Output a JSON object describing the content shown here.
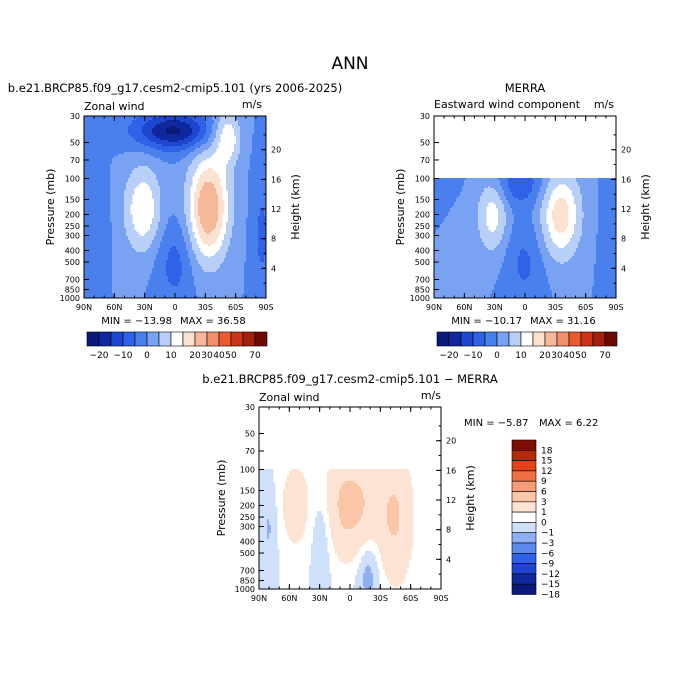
{
  "figure_title": "ANN",
  "chart_data": [
    {
      "type": "heatmap",
      "id": "model",
      "panel_title": "b.e21.BRCP85.f09_g17.cesm2-cmip5.101 (yrs 2006-2025)",
      "left_label": "Zonal wind",
      "right_label": "m/s",
      "xlabel": "",
      "ylabel": "Pressure (mb)",
      "y2label": "Height (km)",
      "x_ticks": [
        "90N",
        "60N",
        "30N",
        "0",
        "30S",
        "60S",
        "90S"
      ],
      "y_ticks": [
        "30",
        "50",
        "70",
        "100",
        "150",
        "200",
        "250",
        "300",
        "400",
        "500",
        "700",
        "850",
        "1000"
      ],
      "y2_ticks": [
        "20",
        "16",
        "12",
        "8",
        "4"
      ],
      "ylim": [
        1000,
        30
      ],
      "data_top_mb": 30,
      "min": "MIN = −13.98",
      "max": "MAX =   36.58",
      "colorbar_labels": [
        "−20",
        "−10",
        "0",
        "10",
        "20",
        "30",
        "40",
        "50",
        "70"
      ],
      "field": {
        "features": [
          {
            "lat": 32,
            "p": 180,
            "amp": 15,
            "wlat": 13,
            "wlogp": 0.58
          },
          {
            "lat": -33,
            "p": 175,
            "amp": 26,
            "wlat": 14,
            "wlogp": 0.7
          },
          {
            "lat": -52,
            "p": 45,
            "amp": 14,
            "wlat": 9,
            "wlogp": 0.35
          },
          {
            "lat": 12,
            "p": 40,
            "amp": -14,
            "wlat": 24,
            "wlogp": 0.25
          },
          {
            "lat": -10,
            "p": 40,
            "amp": -10,
            "wlat": 20,
            "wlogp": 0.25
          },
          {
            "lat": 0,
            "p": 500,
            "amp": -7,
            "wlat": 13,
            "wlogp": 0.6
          },
          {
            "lat": 85,
            "p": 200,
            "amp": -4,
            "wlat": 12,
            "wlogp": 0.6
          },
          {
            "lat": -86,
            "p": 300,
            "amp": -6,
            "wlat": 7,
            "wlogp": 0.9
          }
        ]
      }
    },
    {
      "type": "heatmap",
      "id": "obs",
      "panel_title": "MERRA",
      "left_label": "Eastward wind component",
      "right_label": "m/s",
      "xlabel": "",
      "ylabel": "Pressure (mb)",
      "y2label": "Height (km)",
      "x_ticks": [
        "90N",
        "60N",
        "30N",
        "0",
        "30S",
        "60S",
        "90S"
      ],
      "y_ticks": [
        "30",
        "50",
        "70",
        "100",
        "150",
        "200",
        "250",
        "300",
        "400",
        "500",
        "700",
        "850",
        "1000"
      ],
      "y2_ticks": [
        "20",
        "16",
        "12",
        "8",
        "4"
      ],
      "ylim": [
        1000,
        30
      ],
      "data_top_mb": 100,
      "min": "MIN = −10.17",
      "max": "MAX =   31.16",
      "colorbar_labels": [
        "−20",
        "−10",
        "0",
        "10",
        "20",
        "30",
        "40",
        "50",
        "70"
      ],
      "field": {
        "features": [
          {
            "lat": 32,
            "p": 190,
            "amp": 13,
            "wlat": 11,
            "wlogp": 0.55
          },
          {
            "lat": -35,
            "p": 200,
            "amp": 18,
            "wlat": 14,
            "wlogp": 0.6
          },
          {
            "lat": 8,
            "p": 110,
            "amp": -9,
            "wlat": 20,
            "wlogp": 0.3
          },
          {
            "lat": 0,
            "p": 500,
            "amp": -6,
            "wlat": 14,
            "wlogp": 0.6
          },
          {
            "lat": -86,
            "p": 350,
            "amp": -5,
            "wlat": 7,
            "wlogp": 0.9
          }
        ]
      }
    },
    {
      "type": "heatmap",
      "id": "diff",
      "panel_title": "b.e21.BRCP85.f09_g17.cesm2-cmip5.101 − MERRA",
      "left_label": "Zonal wind",
      "right_label": "m/s",
      "xlabel": "",
      "ylabel": "Pressure (mb)",
      "y2label": "Height (km)",
      "x_ticks": [
        "90N",
        "60N",
        "30N",
        "0",
        "30S",
        "60S",
        "90S"
      ],
      "y_ticks": [
        "30",
        "50",
        "70",
        "100",
        "150",
        "200",
        "250",
        "300",
        "400",
        "500",
        "700",
        "850",
        "1000"
      ],
      "y2_ticks": [
        "20",
        "16",
        "12",
        "8",
        "4"
      ],
      "ylim": [
        1000,
        30
      ],
      "data_top_mb": 100,
      "min": "MIN =   −5.87",
      "max": "MAX =     6.22",
      "colorbar_labels": [
        "18",
        "15",
        "12",
        "9",
        "6",
        "3",
        "1",
        "0",
        "−1",
        "−3",
        "−6",
        "−9",
        "−12",
        "−15",
        "−18"
      ],
      "field": {
        "features": [
          {
            "lat": 0,
            "p": 200,
            "amp": 3.8,
            "wlat": 20,
            "wlogp": 0.7
          },
          {
            "lat": -45,
            "p": 250,
            "amp": 3.0,
            "wlat": 12,
            "wlogp": 0.9
          },
          {
            "lat": 55,
            "p": 200,
            "amp": 1.6,
            "wlat": 12,
            "wlogp": 0.7
          },
          {
            "lat": 1,
            "p": 148,
            "amp": 2.5,
            "wlat": 3,
            "wlogp": 0.05
          },
          {
            "lat": -18,
            "p": 700,
            "amp": -1.8,
            "wlat": 8,
            "wlogp": 0.5
          },
          {
            "lat": 28,
            "p": 300,
            "amp": -1.6,
            "wlat": 8,
            "wlogp": 0.7
          },
          {
            "lat": 80,
            "p": 300,
            "amp": -1.2,
            "wlat": 6,
            "wlogp": 0.6
          }
        ]
      }
    }
  ],
  "colors": {
    "wind_fills": [
      "#0a1a7a",
      "#10289e",
      "#1e46d0",
      "#2f62e6",
      "#4a80ee",
      "#7aa2f2",
      "#b8d0f8",
      "#ffffff",
      "#fbe2cf",
      "#f7b89a",
      "#f2906d",
      "#eb5a2e",
      "#cc3318",
      "#a4200e",
      "#6e0a04"
    ],
    "diff_fills": [
      "#0a1a7a",
      "#10289e",
      "#1e46d0",
      "#2f62e6",
      "#5a8aee",
      "#8db0f4",
      "#cfe0fb",
      "#ffffff",
      "#fde3d3",
      "#fbc6a6",
      "#f59c76",
      "#ee6f43",
      "#e24418",
      "#b52a0a",
      "#800d04"
    ]
  }
}
